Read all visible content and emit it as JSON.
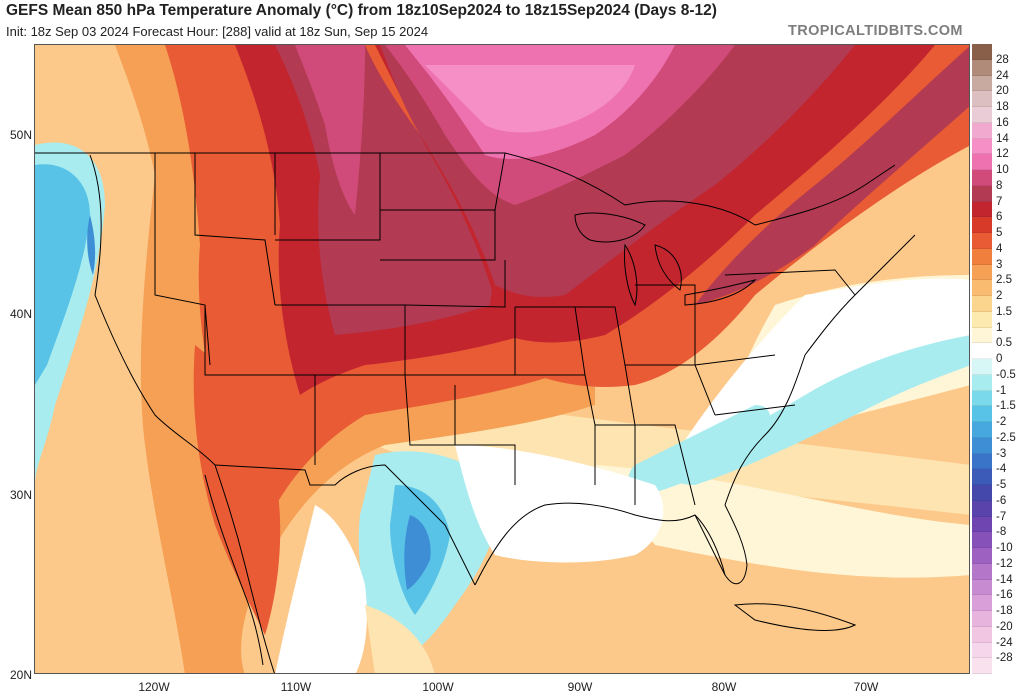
{
  "header": {
    "title": "GEFS Mean 850 hPa Temperature Anomaly (°C) from 18z10Sep2024 to 18z15Sep2024 (Days 8-12)",
    "subtitle": "Init: 18z Sep 03 2024   Forecast Hour: [288]   valid at 18z Sun, Sep 15 2024",
    "brand": "TROPICALTIDBITS.COM"
  },
  "axes": {
    "lat_labels": [
      "50N",
      "40N",
      "30N",
      "20N"
    ],
    "lon_labels": [
      "120W",
      "110W",
      "100W",
      "90W",
      "80W",
      "70W"
    ]
  },
  "colorbar": {
    "levels": [
      "28",
      "24",
      "20",
      "18",
      "16",
      "14",
      "12",
      "10",
      "8",
      "7",
      "6",
      "5",
      "4",
      "3",
      "2.5",
      "2",
      "1.5",
      "1",
      "0.5",
      "0",
      "-0.5",
      "-1",
      "-1.5",
      "-2",
      "-2.5",
      "-3",
      "-4",
      "-5",
      "-6",
      "-7",
      "-8",
      "-10",
      "-12",
      "-14",
      "-16",
      "-18",
      "-20",
      "-24",
      "-28"
    ],
    "colors": [
      "#8a5f4a",
      "#b08b7a",
      "#c9aaa0",
      "#dcbfc0",
      "#e9ccd6",
      "#f1a9cf",
      "#f58fc6",
      "#ee72b0",
      "#d04b7a",
      "#b23a52",
      "#c2252e",
      "#d83a2a",
      "#e85b34",
      "#f07e3c",
      "#f5a055",
      "#f8bb70",
      "#fbd58d",
      "#fdeaae",
      "#fff6d8",
      "#ffffff",
      "#d6f7f6",
      "#a8ecef",
      "#7ad9ea",
      "#58c3e6",
      "#47a8e0",
      "#3e8ed6",
      "#3a74c9",
      "#3c5ab8",
      "#4448aa",
      "#5a43aa",
      "#6e45b1",
      "#8651b8",
      "#9d62c1",
      "#b476c9",
      "#c78bd1",
      "#d89fd8",
      "#e7b4de",
      "#f0c6e3",
      "#f6d6ea"
    ],
    "bottom_color": "#f9e1ee"
  },
  "palette": {
    "ocean_warm": "#fcc98a",
    "ocean_pale": "#fde4b0",
    "cool_1": "#a8ecef",
    "cool_2": "#58c3e6",
    "cool_3": "#3e8ed6",
    "warm_1": "#f5a055",
    "warm_2": "#e85b34",
    "warm_3": "#c2252e",
    "warm_4": "#b23a52",
    "warm_5": "#d04b7a",
    "warm_6": "#ee72b0",
    "warm_7": "#f58fc6",
    "borders": "#000000"
  }
}
